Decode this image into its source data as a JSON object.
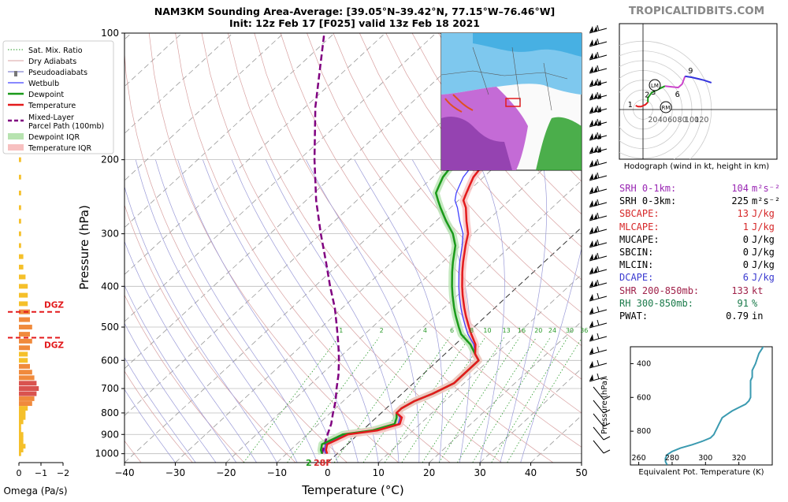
{
  "page": {
    "title_line1": "NAM3KM Sounding Area-Average: [39.05°N–39.42°N, 77.15°W–76.46°W]",
    "title_line2": "Init: 12z Feb 17 [F025] valid 13z Feb 18 2021",
    "brand": "TROPICALTIDBITS.COM"
  },
  "colors": {
    "temperature": "#e31a1c",
    "dewpoint": "#1a9a1a",
    "wetbulb": "#4040ff",
    "parcel": "#800080",
    "hodo_low": "#e31a1c",
    "hodo_mid": "#1a9a1a",
    "hodo_upper": "#cc44cc",
    "hodo_top": "#3333dd",
    "theta": "#3a9ab0"
  },
  "legend": {
    "items": [
      {
        "label": "Sat. Mix. Ratio"
      },
      {
        "label": "Dry Adiabats"
      },
      {
        "label": "Pseudoadiabats"
      },
      {
        "label": "Wetbulb"
      },
      {
        "label": "Dewpoint"
      },
      {
        "label": "Temperature"
      },
      {
        "label": "Mixed-Layer"
      },
      {
        "label": "Parcel Path (100mb)"
      },
      {
        "label": "Dewpoint IQR"
      },
      {
        "label": "Temperature IQR"
      }
    ]
  },
  "omega": {
    "xlabel": "Omega (Pa/s)",
    "ticks": [
      "0",
      "−1",
      "−2"
    ],
    "dgz_label": "DGZ",
    "dgz_levels_hpa": [
      460,
      530
    ]
  },
  "skewt": {
    "xlabel": "Temperature (°C)",
    "ylabel": "Pressure (hPa)",
    "x_ticks": [
      "−40",
      "−30",
      "−20",
      "−10",
      "0",
      "10",
      "20",
      "30",
      "40",
      "50"
    ],
    "p_ticks": [
      "100",
      "200",
      "300",
      "400",
      "500",
      "600",
      "700",
      "800",
      "900",
      "1000"
    ],
    "mixing_ratio_labels": [
      "1",
      "2",
      "4",
      "6",
      "8",
      "10",
      "13",
      "16",
      "20",
      "24",
      "30",
      "36"
    ],
    "surface_label": "28F",
    "surface_level_label": "2"
  },
  "hodograph": {
    "caption": "Hodograph (wind in kt, height in km)",
    "ring_labels": [
      "20",
      "40",
      "60",
      "80",
      "100",
      "120"
    ],
    "point_labels": [
      "1",
      "2",
      "3",
      "6",
      "9"
    ],
    "lm_label": "LM",
    "rm_label": "RM"
  },
  "theta": {
    "xlabel": "Equivalent Pot. Temperature (K)",
    "ylabel": "Pressure (hPa)",
    "x_ticks": [
      "260",
      "280",
      "300",
      "320"
    ],
    "y_ticks": [
      "400",
      "600",
      "800"
    ]
  },
  "stats": [
    {
      "label": "SRH 0-1km:",
      "value": "104",
      "unit": "m²s⁻²",
      "color": "#9a28b4"
    },
    {
      "label": "SRH 0-3km:",
      "value": "225",
      "unit": "m²s⁻²",
      "color": "#000000"
    },
    {
      "label": "SBCAPE:",
      "value": "13",
      "unit": "J/kg",
      "color": "#d62728"
    },
    {
      "label": "MLCAPE:",
      "value": "1",
      "unit": "J/kg",
      "color": "#d62728"
    },
    {
      "label": "MUCAPE:",
      "value": "0",
      "unit": "J/kg",
      "color": "#000000"
    },
    {
      "label": "SBCIN:",
      "value": "0",
      "unit": "J/kg",
      "color": "#000000"
    },
    {
      "label": "MLCIN:",
      "value": "0",
      "unit": "J/kg",
      "color": "#000000"
    },
    {
      "label": "DCAPE:",
      "value": "6",
      "unit": "J/kg",
      "color": "#3a3ad0"
    },
    {
      "label": "SHR 200-850mb:",
      "value": "133",
      "unit": "kt",
      "color": "#a0224a"
    },
    {
      "label": "RH 300-850mb:",
      "value": "91",
      "unit": "%",
      "color": "#1a7a4a"
    },
    {
      "label": "PWAT:",
      "value": "0.79",
      "unit": "in",
      "color": "#000000"
    }
  ],
  "chart_data": [
    {
      "type": "line",
      "title": "NAM3KM Sounding Area-Average: [39.05°N–39.42°N, 77.15°W–76.46°W]",
      "xlabel": "Temperature (°C)",
      "ylabel": "Pressure (hPa)",
      "xlim": [
        -40,
        50
      ],
      "ylim": [
        1050,
        100
      ],
      "log_y": true,
      "series": [
        {
          "name": "Temperature",
          "p": [
            1000,
            980,
            950,
            925,
            900,
            880,
            850,
            820,
            800,
            780,
            750,
            720,
            700,
            680,
            650,
            620,
            600,
            580,
            550,
            520,
            500,
            470,
            450,
            420,
            400,
            370,
            350,
            320,
            300,
            280,
            260,
            250,
            240,
            230,
            220,
            210,
            200,
            190,
            180,
            170,
            160,
            150,
            140,
            130,
            120,
            110,
            100
          ],
          "t": [
            -2,
            -3,
            -4,
            -3,
            -2,
            3,
            6,
            5,
            3,
            3,
            4,
            6,
            7,
            8,
            8,
            8,
            8,
            6,
            4,
            1,
            -1,
            -4,
            -6,
            -9,
            -11,
            -14,
            -16,
            -19,
            -21,
            -24,
            -27,
            -29,
            -30,
            -31,
            -32,
            -32.5,
            -33,
            -33,
            -33,
            -32,
            -32,
            -33,
            -34,
            -35,
            -36,
            -37,
            -38
          ]
        },
        {
          "name": "Dewpoint",
          "p": [
            1000,
            980,
            950,
            925,
            900,
            880,
            850,
            820,
            800,
            780,
            750,
            720,
            700,
            680,
            650,
            620,
            600,
            580,
            550,
            520,
            500,
            470,
            450,
            420,
            400,
            370,
            350,
            320,
            300,
            280,
            260,
            250,
            240,
            230,
            220,
            210,
            200,
            190,
            180,
            170,
            160,
            150,
            140,
            130,
            120,
            110,
            100
          ],
          "t": [
            -3,
            -4,
            -5,
            -4,
            -3,
            2,
            5,
            4,
            3,
            3,
            4,
            6,
            7,
            8,
            8,
            8,
            8,
            6,
            3,
            -1,
            -3,
            -6,
            -8,
            -11,
            -13,
            -16,
            -18,
            -21,
            -24,
            -28,
            -32,
            -34,
            -36,
            -37,
            -38,
            -38.5,
            -39,
            -41,
            -43,
            -45,
            -47,
            -49,
            -51,
            -53,
            -55,
            -57,
            -59
          ]
        },
        {
          "name": "Mixed-Layer Parcel Path (100mb)",
          "p": [
            1000,
            950,
            900,
            850,
            800,
            750,
            700,
            650,
            600,
            550,
            500,
            450,
            400,
            350,
            300,
            250,
            200,
            150,
            100
          ],
          "t": [
            -3,
            -4.5,
            -6,
            -7.5,
            -9.5,
            -11.5,
            -14,
            -16.5,
            -19.5,
            -23,
            -27,
            -31.5,
            -37,
            -43,
            -50,
            -58,
            -67,
            -78,
            -92
          ]
        }
      ],
      "omega_bars": {
        "p": [
          1000,
          980,
          960,
          940,
          920,
          900,
          880,
          860,
          840,
          820,
          800,
          780,
          760,
          740,
          720,
          700,
          680,
          660,
          640,
          620,
          600,
          580,
          560,
          540,
          520,
          500,
          480,
          460,
          440,
          420,
          400,
          380,
          360,
          340,
          320,
          300,
          280,
          260,
          240,
          220,
          200
        ],
        "omega": [
          -0.1,
          -0.2,
          -0.3,
          -0.2,
          -0.2,
          -0.2,
          -0.1,
          -0.1,
          -0.2,
          -0.3,
          -0.3,
          -0.4,
          -0.6,
          -0.7,
          -0.8,
          -0.9,
          -0.8,
          -0.7,
          -0.6,
          -0.5,
          -0.4,
          -0.4,
          -0.5,
          -0.6,
          -0.5,
          -0.6,
          -0.5,
          -0.5,
          -0.4,
          -0.4,
          -0.4,
          -0.3,
          -0.2,
          -0.2,
          -0.1,
          -0.1,
          -0.1,
          -0.1,
          -0.1,
          -0.1,
          -0.1
        ]
      }
    },
    {
      "type": "line",
      "title": "",
      "xlabel": "",
      "ylabel": "",
      "series": [
        {
          "name": "Hodograph",
          "points": [
            [
              -15,
              8
            ],
            [
              -10,
              6
            ],
            [
              -4,
              6
            ],
            [
              5,
              10
            ],
            [
              10,
              15
            ],
            [
              10,
              24
            ],
            [
              18,
              35
            ],
            [
              45,
              48
            ],
            [
              72,
              45
            ],
            [
              80,
              52
            ],
            [
              86,
              68
            ],
            [
              100,
              66
            ],
            [
              125,
              60
            ],
            [
              140,
              55
            ]
          ]
        }
      ]
    },
    {
      "type": "line",
      "title": "",
      "xlabel": "Equivalent Pot. Temperature (K)",
      "ylabel": "Pressure (hPa)",
      "xlim": [
        255,
        340
      ],
      "ylim": [
        1000,
        300
      ],
      "series": [
        {
          "name": "",
          "p": [
            1000,
            980,
            960,
            940,
            920,
            900,
            880,
            860,
            840,
            820,
            800,
            780,
            760,
            740,
            720,
            700,
            680,
            660,
            640,
            620,
            600,
            580,
            560,
            540,
            520,
            500,
            480,
            460,
            440,
            420,
            400,
            370,
            340,
            310,
            290
          ],
          "theta_e": [
            277,
            276,
            276,
            277,
            280,
            285,
            292,
            298,
            303,
            305,
            306,
            307,
            308,
            309,
            310,
            313,
            316,
            320,
            324,
            326,
            327,
            327,
            327,
            327,
            327,
            327,
            328,
            328,
            328,
            329,
            330,
            331,
            332,
            334,
            335
          ]
        }
      ]
    }
  ]
}
